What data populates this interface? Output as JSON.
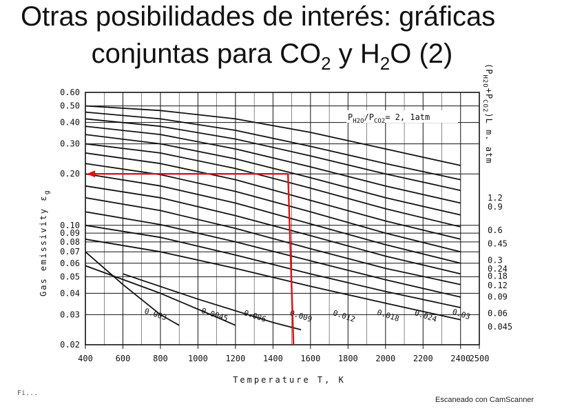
{
  "title": {
    "line1": "Otras posibilidades de interés: gráficas",
    "line2_a": "conjuntas para CO",
    "line2_sub1": "2",
    "line2_b": " y H",
    "line2_sub2": "2",
    "line2_c": "O (2)"
  },
  "footer": {
    "scanner": "Escaneado con CamScanner",
    "cut_caption": "Fi..."
  },
  "colors": {
    "grid": "#111111",
    "curve": "#111111",
    "annotation": "#e01010",
    "background": "#ffffff"
  },
  "chart_data": {
    "type": "line",
    "xlabel": "Temperature  T, K",
    "ylabel": "Gas emissivity  ε",
    "ylabel_subscript": "g",
    "right_axis_title": "(P",
    "right_axis_title_sub": "H2O",
    "right_axis_title_rest": "+P",
    "right_axis_title_sub2": "CO2",
    "right_axis_title_end": ")L m. atm",
    "condition_label": "P",
    "condition_sub": "H2O",
    "condition_mid": "/P",
    "condition_sub2": "CO2",
    "condition_end": "= 2, 1atm",
    "x_scale": "linear",
    "y_scale": "log",
    "xlim": [
      400,
      2500
    ],
    "ylim": [
      0.02,
      0.6
    ],
    "grid": true,
    "x_ticks": [
      400,
      600,
      800,
      1000,
      1200,
      1400,
      1600,
      1800,
      2000,
      2200,
      2400,
      2500
    ],
    "x_tick_labels": [
      "400",
      "600",
      "800",
      "1000",
      "1200",
      "1400",
      "1600",
      "1800",
      "2000",
      "2200",
      "2400",
      "2500"
    ],
    "y_ticks": [
      0.02,
      0.03,
      0.04,
      0.05,
      0.06,
      0.07,
      0.08,
      0.09,
      0.1,
      0.2,
      0.3,
      0.4,
      0.5,
      0.6
    ],
    "y_tick_labels": [
      "0.02",
      "0.03",
      "0.04",
      "0.05",
      "0.06",
      "0.07",
      "0.08",
      "0.09",
      "0.10",
      "0.20",
      "0.30",
      "0.40",
      "0.50",
      "0.60"
    ],
    "right_labels": [
      {
        "text": "1.2",
        "y": 0.145
      },
      {
        "text": "0.9",
        "y": 0.128
      },
      {
        "text": "0.6",
        "y": 0.0935
      },
      {
        "text": "0.45",
        "y": 0.078
      },
      {
        "text": "0.3",
        "y": 0.0625
      },
      {
        "text": "0.24",
        "y": 0.0555
      },
      {
        "text": "0.18",
        "y": 0.0505
      },
      {
        "text": "0.12",
        "y": 0.0445
      },
      {
        "text": "0.09",
        "y": 0.0382
      },
      {
        "text": "0.06",
        "y": 0.0305
      },
      {
        "text": "0.045",
        "y": 0.0255
      }
    ],
    "inline_labels": [
      {
        "text": "0.003",
        "x": 770,
        "y": 0.0292
      },
      {
        "text": "0.0045",
        "x": 1085,
        "y": 0.0291
      },
      {
        "text": "0.006",
        "x": 1300,
        "y": 0.0285
      },
      {
        "text": "0.009",
        "x": 1545,
        "y": 0.0285
      },
      {
        "text": "0.012",
        "x": 1775,
        "y": 0.0285
      },
      {
        "text": "0.018",
        "x": 2010,
        "y": 0.0287
      },
      {
        "text": "0.024",
        "x": 2210,
        "y": 0.0285
      },
      {
        "text": "0.03",
        "x": 2400,
        "y": 0.0292
      }
    ],
    "series": [
      {
        "name": "",
        "x": [
          400,
          800,
          1200,
          1600,
          2000,
          2400
        ],
        "values": [
          0.5,
          0.47,
          0.42,
          0.35,
          0.28,
          0.224
        ]
      },
      {
        "name": "",
        "x": [
          400,
          800,
          1200,
          1600,
          2000,
          2400
        ],
        "values": [
          0.46,
          0.42,
          0.36,
          0.29,
          0.23,
          0.185
        ]
      },
      {
        "name": "",
        "x": [
          400,
          800,
          1200,
          1600,
          2000,
          2400
        ],
        "values": [
          0.42,
          0.38,
          0.32,
          0.255,
          0.2,
          0.16
        ]
      },
      {
        "name": "",
        "x": [
          400,
          800,
          1200,
          1600,
          2000,
          2400
        ],
        "values": [
          0.38,
          0.34,
          0.28,
          0.22,
          0.17,
          0.135
        ]
      },
      {
        "name": "",
        "x": [
          400,
          800,
          1200,
          1600,
          2000,
          2400
        ],
        "values": [
          0.34,
          0.3,
          0.245,
          0.19,
          0.145,
          0.115
        ]
      },
      {
        "name": "",
        "x": [
          400,
          800,
          1200,
          1600,
          2000,
          2400
        ],
        "values": [
          0.3,
          0.265,
          0.215,
          0.165,
          0.125,
          0.098
        ]
      },
      {
        "name": "",
        "x": [
          400,
          800,
          1200,
          1600,
          2000,
          2400
        ],
        "values": [
          0.265,
          0.23,
          0.185,
          0.14,
          0.106,
          0.083
        ]
      },
      {
        "name": "",
        "x": [
          400,
          800,
          1200,
          1600,
          2000,
          2400
        ],
        "values": [
          0.23,
          0.198,
          0.158,
          0.12,
          0.09,
          0.07
        ]
      },
      {
        "name": "",
        "x": [
          400,
          800,
          1200,
          1600,
          2000,
          2400
        ],
        "values": [
          0.2,
          0.17,
          0.135,
          0.102,
          0.077,
          0.06
        ]
      },
      {
        "name": "",
        "x": [
          400,
          800,
          1200,
          1600,
          2000,
          2400
        ],
        "values": [
          0.17,
          0.145,
          0.114,
          0.087,
          0.066,
          0.052
        ]
      },
      {
        "name": "",
        "x": [
          400,
          800,
          1200,
          1600,
          2000,
          2400
        ],
        "values": [
          0.145,
          0.122,
          0.096,
          0.073,
          0.056,
          0.045
        ]
      },
      {
        "name": "",
        "x": [
          400,
          800,
          1200,
          1600,
          2000,
          2400
        ],
        "values": [
          0.12,
          0.101,
          0.08,
          0.062,
          0.048,
          0.038
        ]
      },
      {
        "name": "",
        "x": [
          400,
          800,
          1200,
          1600,
          2000,
          2400
        ],
        "values": [
          0.1,
          0.085,
          0.067,
          0.052,
          0.041,
          0.033
        ]
      },
      {
        "name": "",
        "x": [
          400,
          800,
          1200,
          1600,
          2000,
          2400
        ],
        "values": [
          0.083,
          0.07,
          0.056,
          0.044,
          0.035,
          0.028
        ]
      }
    ],
    "short_curves": [
      {
        "name": "",
        "x": [
          400,
          600,
          800,
          900
        ],
        "values": [
          0.07,
          0.045,
          0.03,
          0.026
        ]
      },
      {
        "name": "",
        "x": [
          400,
          800,
          1100,
          1200
        ],
        "values": [
          0.058,
          0.04,
          0.029,
          0.026
        ]
      },
      {
        "name": "",
        "x": [
          600,
          1000,
          1400,
          1550
        ],
        "values": [
          0.052,
          0.037,
          0.027,
          0.0245
        ]
      }
    ],
    "annotation": {
      "temperature": 1480,
      "emissivity": 0.2
    }
  }
}
